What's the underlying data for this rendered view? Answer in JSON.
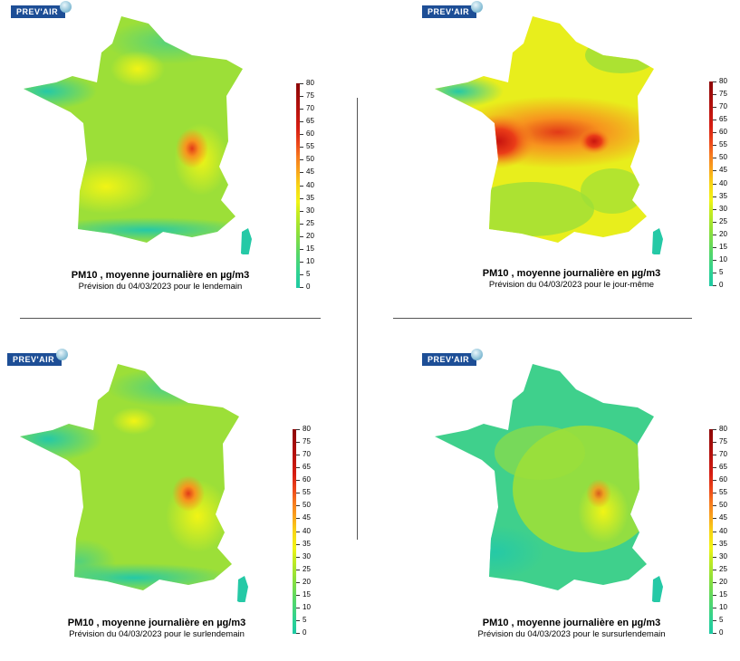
{
  "logo_text": "PREV'AIR",
  "colors": {
    "scale_low": "#1dc9a3",
    "scale_mid": "#f1f415",
    "scale_high": "#8c0606",
    "logo_bg": "#1d4e96"
  },
  "scale_ticks": [
    "80",
    "75",
    "70",
    "65",
    "60",
    "55",
    "50",
    "45",
    "40",
    "35",
    "30",
    "25",
    "20",
    "15",
    "10",
    "5",
    "0"
  ],
  "panels": [
    {
      "title": "PM10 , moyenne journalière en µg/m3",
      "subtitle": "Prévision du 04/03/2023 pour le lendemain"
    },
    {
      "title": "PM10 , moyenne journalière en µg/m3",
      "subtitle": "Prévision du 04/03/2023 pour le jour-même"
    },
    {
      "title": "PM10 , moyenne journalière en µg/m3",
      "subtitle": "Prévision du 04/03/2023 pour le surlendemain"
    },
    {
      "title": "PM10 , moyenne journalière en µg/m3",
      "subtitle": "Prévision du 04/03/2023 pour le sursurlendemain"
    }
  ]
}
